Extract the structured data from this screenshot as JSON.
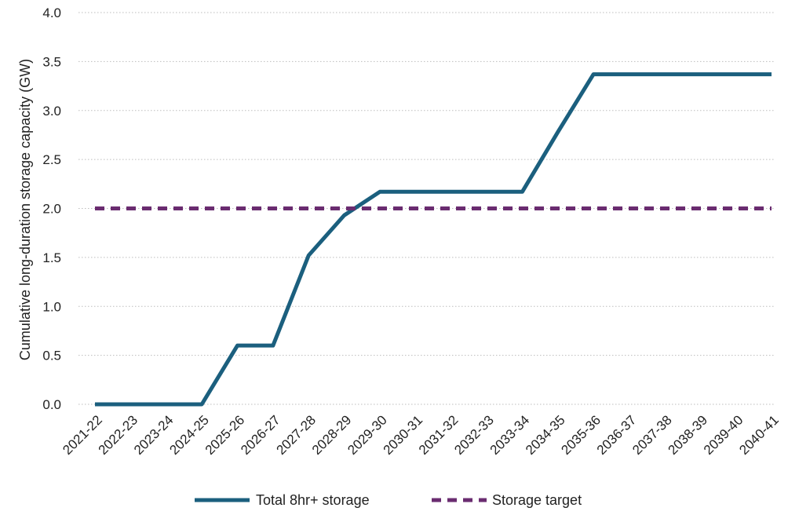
{
  "chart_data": {
    "type": "line",
    "title": "",
    "xlabel": "",
    "ylabel": "Cumulative long-duration storage capacity (GW)",
    "ylim": [
      0,
      4.0
    ],
    "yticks": [
      "0.0",
      "0.5",
      "1.0",
      "1.5",
      "2.0",
      "2.5",
      "3.0",
      "3.5",
      "4.0"
    ],
    "grid": "horizontal dotted",
    "legend_position": "bottom",
    "categories": [
      "2021-22",
      "2022-23",
      "2023-24",
      "2024-25",
      "2025-26",
      "2026-27",
      "2027-28",
      "2028-29",
      "2029-30",
      "2030-31",
      "2031-32",
      "2032-33",
      "2033-34",
      "2034-35",
      "2035-36",
      "2036-37",
      "2037-38",
      "2038-39",
      "2039-40",
      "2040-41"
    ],
    "series": [
      {
        "name": "Total 8hr+ storage",
        "style": "solid",
        "color": "#1b5f7e",
        "values": [
          0,
          0,
          0,
          0,
          0.6,
          0.6,
          1.52,
          1.93,
          2.17,
          2.17,
          2.17,
          2.17,
          2.17,
          2.78,
          3.37,
          3.37,
          3.37,
          3.37,
          3.37,
          3.37
        ]
      },
      {
        "name": "Storage target",
        "style": "dashed",
        "color": "#6a2c70",
        "values": [
          2.0,
          2.0,
          2.0,
          2.0,
          2.0,
          2.0,
          2.0,
          2.0,
          2.0,
          2.0,
          2.0,
          2.0,
          2.0,
          2.0,
          2.0,
          2.0,
          2.0,
          2.0,
          2.0,
          2.0
        ]
      }
    ]
  }
}
